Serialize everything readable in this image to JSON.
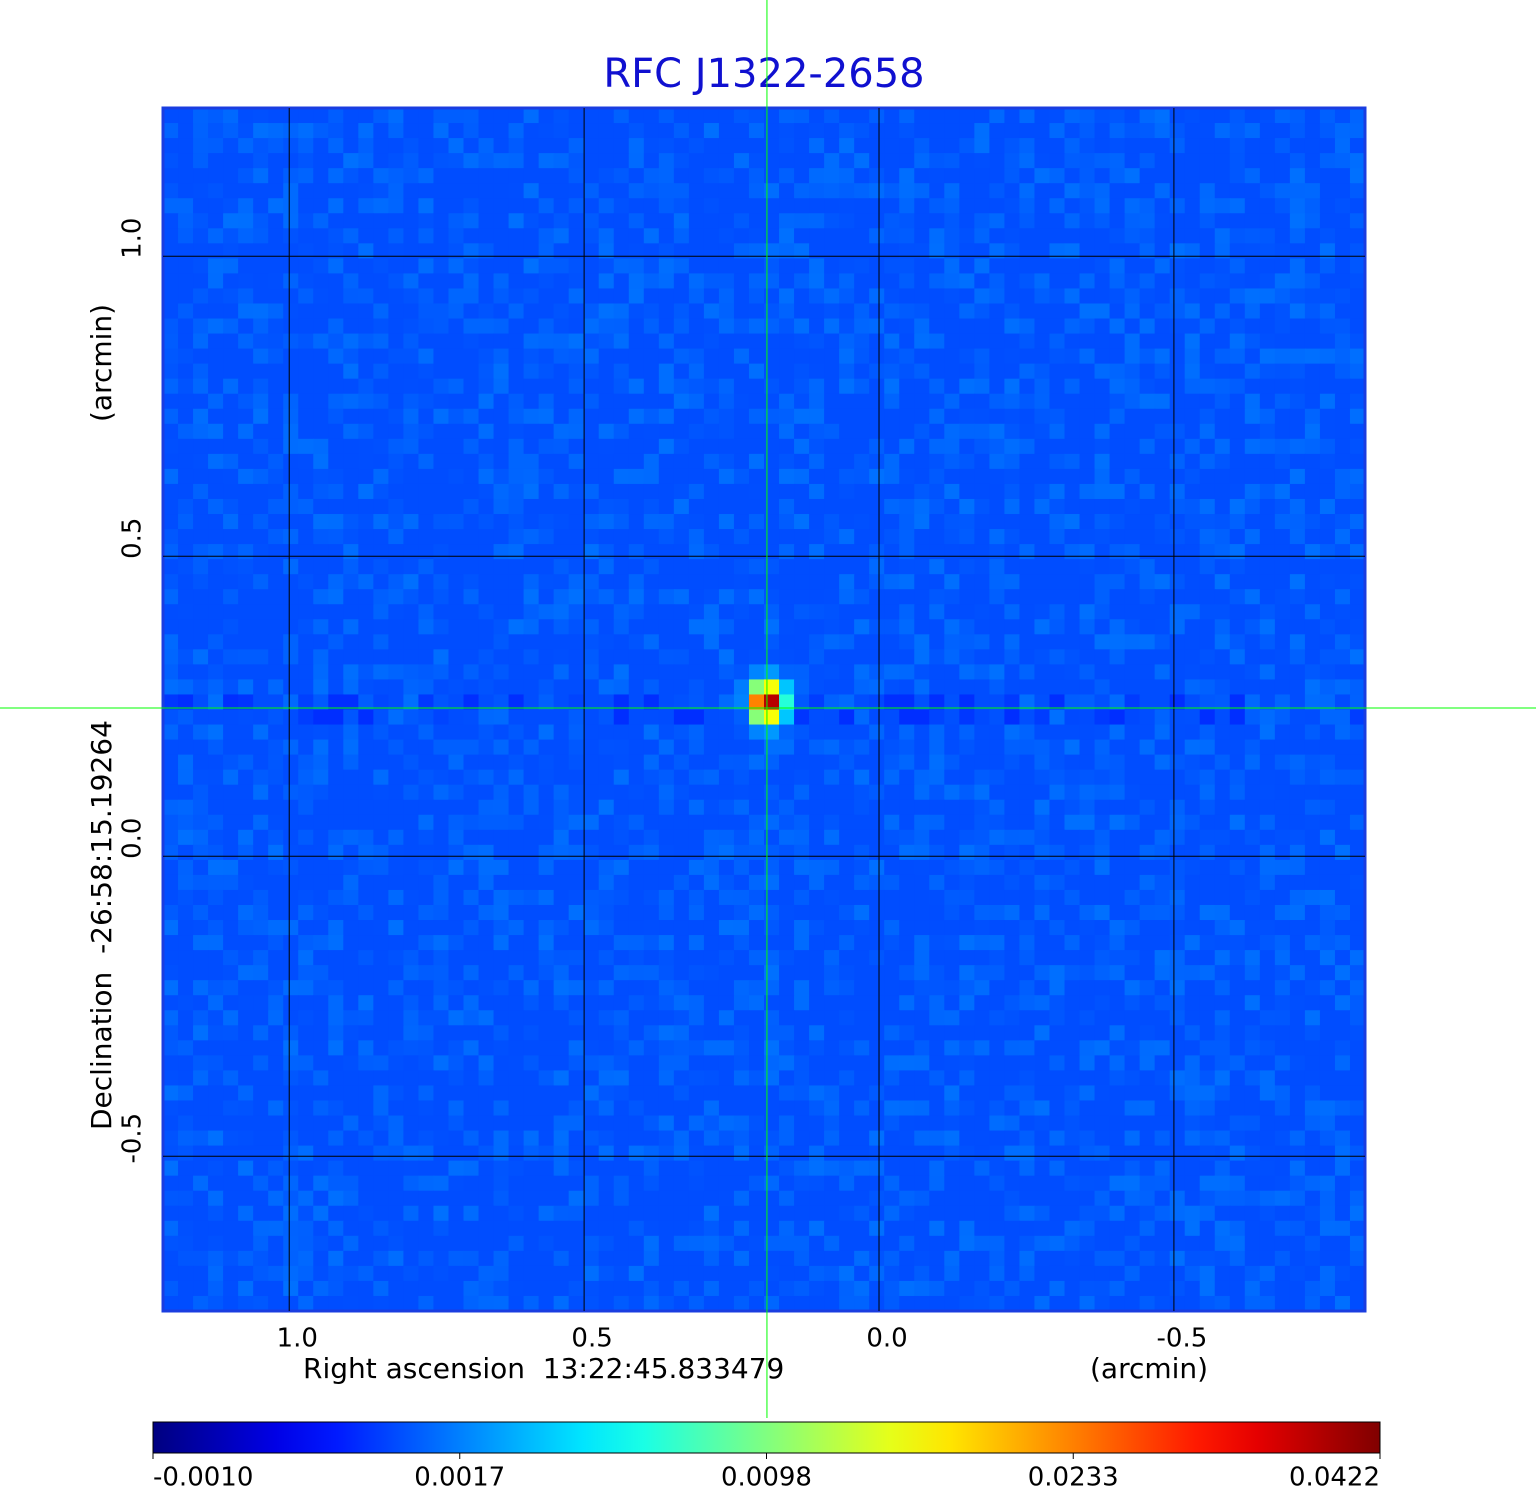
{
  "chart_data": {
    "type": "image",
    "title": "RFC J1322-2658",
    "title_color": "#1010d0",
    "x_label": "Right ascension  13:22:45.833479",
    "x_unit": "(arcmin)",
    "y_label": "Declination  -26:58:15.19264",
    "y_unit": "(arcmin)",
    "xlim": [
      1.214,
      -0.824
    ],
    "ylim": [
      -0.758,
      1.247
    ],
    "xticks": [
      {
        "value": 1,
        "label": "1.0"
      },
      0.5,
      {
        "value": 0,
        "label": "0.0"
      },
      -0.5
    ],
    "yticks": [
      {
        "value": 1,
        "label": "1.0"
      },
      0.5,
      {
        "value": 0,
        "label": "0.0"
      },
      -0.5
    ],
    "grid": true,
    "crosshair": {
      "x": 0.19,
      "y": 0.247,
      "color": "#00ff00"
    },
    "colormap": "jet",
    "colorbar": {
      "ticks": [
        {
          "value": -0.001,
          "label": "-0.0010"
        },
        {
          "value": 0.0017,
          "label": "0.0017"
        },
        {
          "value": 0.0098,
          "label": "0.0098"
        },
        {
          "value": 0.0233,
          "label": "0.0233"
        },
        {
          "value": 0.0422,
          "label": "0.0422"
        }
      ]
    }
  }
}
